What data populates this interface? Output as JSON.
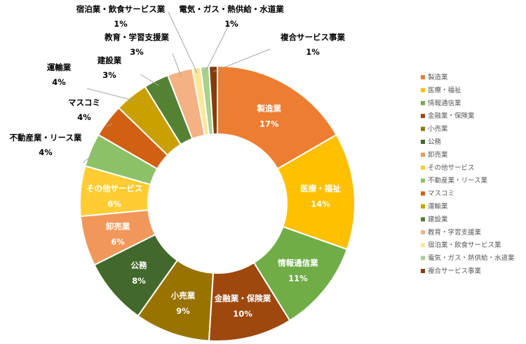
{
  "chart_data": {
    "type": "pie",
    "donut": true,
    "title": "",
    "legend_position": "right",
    "series": [
      {
        "values": [
          17,
          14,
          11,
          10,
          9,
          8,
          6,
          6,
          4,
          4,
          4,
          3,
          3,
          1,
          1,
          1
        ],
        "labels": [
          {
            "name": "製造業",
            "value_label": "17%"
          },
          {
            "name": "医療・福祉",
            "value_label": "14%"
          },
          {
            "name": "情報通信業",
            "value_label": "11%"
          },
          {
            "name": "金融業・保険業",
            "value_label": "10%"
          },
          {
            "name": "小売業",
            "value_label": "9%"
          },
          {
            "name": "公務",
            "value_label": "8%"
          },
          {
            "name": "卸売業",
            "value_label": "6%"
          },
          {
            "name": "その他サービス",
            "value_label": "6%"
          },
          {
            "name": "不動産業・リース業",
            "value_label": "4%"
          },
          {
            "name": "マスコミ",
            "value_label": "4%"
          },
          {
            "name": "運輸業",
            "value_label": "4%"
          },
          {
            "name": "建設業",
            "value_label": "3%"
          },
          {
            "name": "教育・学習支援業",
            "value_label": "3%"
          },
          {
            "name": "宿泊業・飲食サービス業",
            "value_label": "1%"
          },
          {
            "name": "電気・ガス・熱供給・水道業",
            "value_label": "1%"
          },
          {
            "name": "複合サービス事業",
            "value_label": "1%"
          }
        ]
      }
    ],
    "colors": [
      "#ED7D31",
      "#FFC000",
      "#70AD47",
      "#9E480E",
      "#997300",
      "#43682B",
      "#F1975A",
      "#FFCD33",
      "#8CC168",
      "#D26012",
      "#C9A000",
      "#548235",
      "#F4B183",
      "#FFE699",
      "#A9D18E",
      "#843C0C"
    ]
  }
}
